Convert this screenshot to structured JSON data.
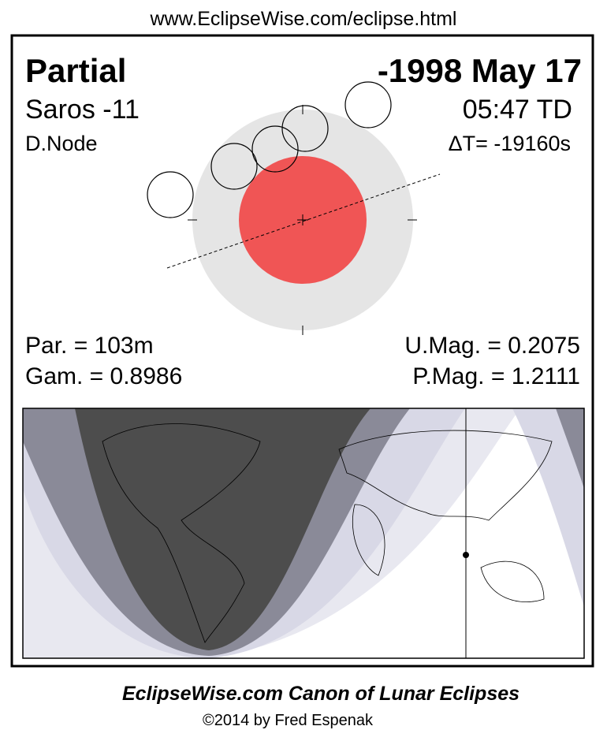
{
  "header": {
    "url": "www.EclipseWise.com/eclipse.html"
  },
  "info": {
    "type": "Partial",
    "date": "-1998 May 17",
    "saros": "Saros -11",
    "time": "05:47 TD",
    "node": "D.Node",
    "delta_t": "ΔT= -19160s",
    "duration": "Par. = 103m",
    "umbral_mag": "U.Mag. = 0.2075",
    "gamma": "Gam. = 0.8986",
    "penumbral_mag": "P.Mag. = 1.2111"
  },
  "footer": {
    "title": "EclipseWise.com Canon of Lunar Eclipses",
    "credit": "©2014 by Fred Espenak"
  }
}
